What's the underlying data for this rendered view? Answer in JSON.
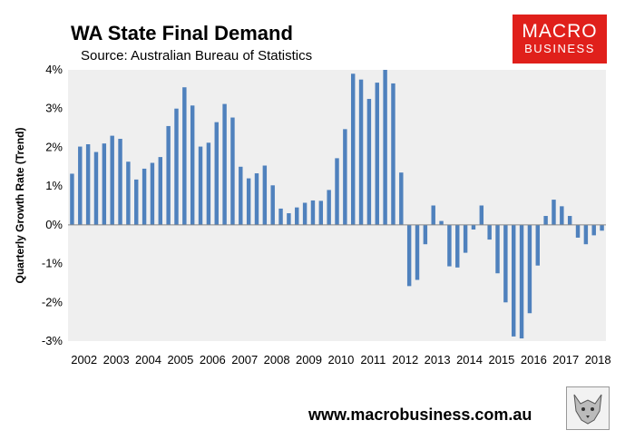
{
  "header": {
    "title": "WA State Final Demand",
    "subtitle": "Source: Australian Bureau of Statistics"
  },
  "logo": {
    "line1": "MACRO",
    "line2": "BUSINESS"
  },
  "footer": {
    "url": "www.macrobusiness.com.au"
  },
  "colors": {
    "bar": "#4f81bd",
    "plot_bg": "#efefef",
    "logo_bg": "#e0201b"
  },
  "chart_data": {
    "type": "bar",
    "title": "WA State Final Demand",
    "xlabel": "",
    "ylabel": "Quarterly Growth Rate (Trend)",
    "ylim": [
      -3,
      4
    ],
    "y_ticks": [
      "-3%",
      "-2%",
      "-1%",
      "0%",
      "1%",
      "2%",
      "3%",
      "4%"
    ],
    "x_tick_labels": [
      "2002",
      "2003",
      "2004",
      "2005",
      "2006",
      "2007",
      "2008",
      "2009",
      "2010",
      "2011",
      "2012",
      "2013",
      "2014",
      "2015",
      "2016",
      "2017",
      "2018"
    ],
    "grid": false,
    "frequency": "quarterly",
    "start_year": 2002,
    "series": [
      {
        "name": "WA State Final Demand quarterly growth (%)",
        "values": [
          1.32,
          2.02,
          2.08,
          1.88,
          2.1,
          2.3,
          2.22,
          1.63,
          1.17,
          1.45,
          1.6,
          1.75,
          2.55,
          3.0,
          3.55,
          3.08,
          2.02,
          2.12,
          2.65,
          3.12,
          2.77,
          1.5,
          1.2,
          1.33,
          1.53,
          1.02,
          0.42,
          0.3,
          0.45,
          0.57,
          0.63,
          0.62,
          0.9,
          1.72,
          2.47,
          3.9,
          3.75,
          3.25,
          3.67,
          4.0,
          3.65,
          1.35,
          -1.58,
          -1.42,
          -0.5,
          0.5,
          0.1,
          -1.07,
          -1.1,
          -0.72,
          -0.12,
          0.5,
          -0.38,
          -1.25,
          -2.0,
          -2.88,
          -2.93,
          -2.28,
          -1.05,
          0.23,
          0.65,
          0.48,
          0.23,
          -0.33,
          -0.5,
          -0.27,
          -0.15
        ]
      }
    ]
  }
}
